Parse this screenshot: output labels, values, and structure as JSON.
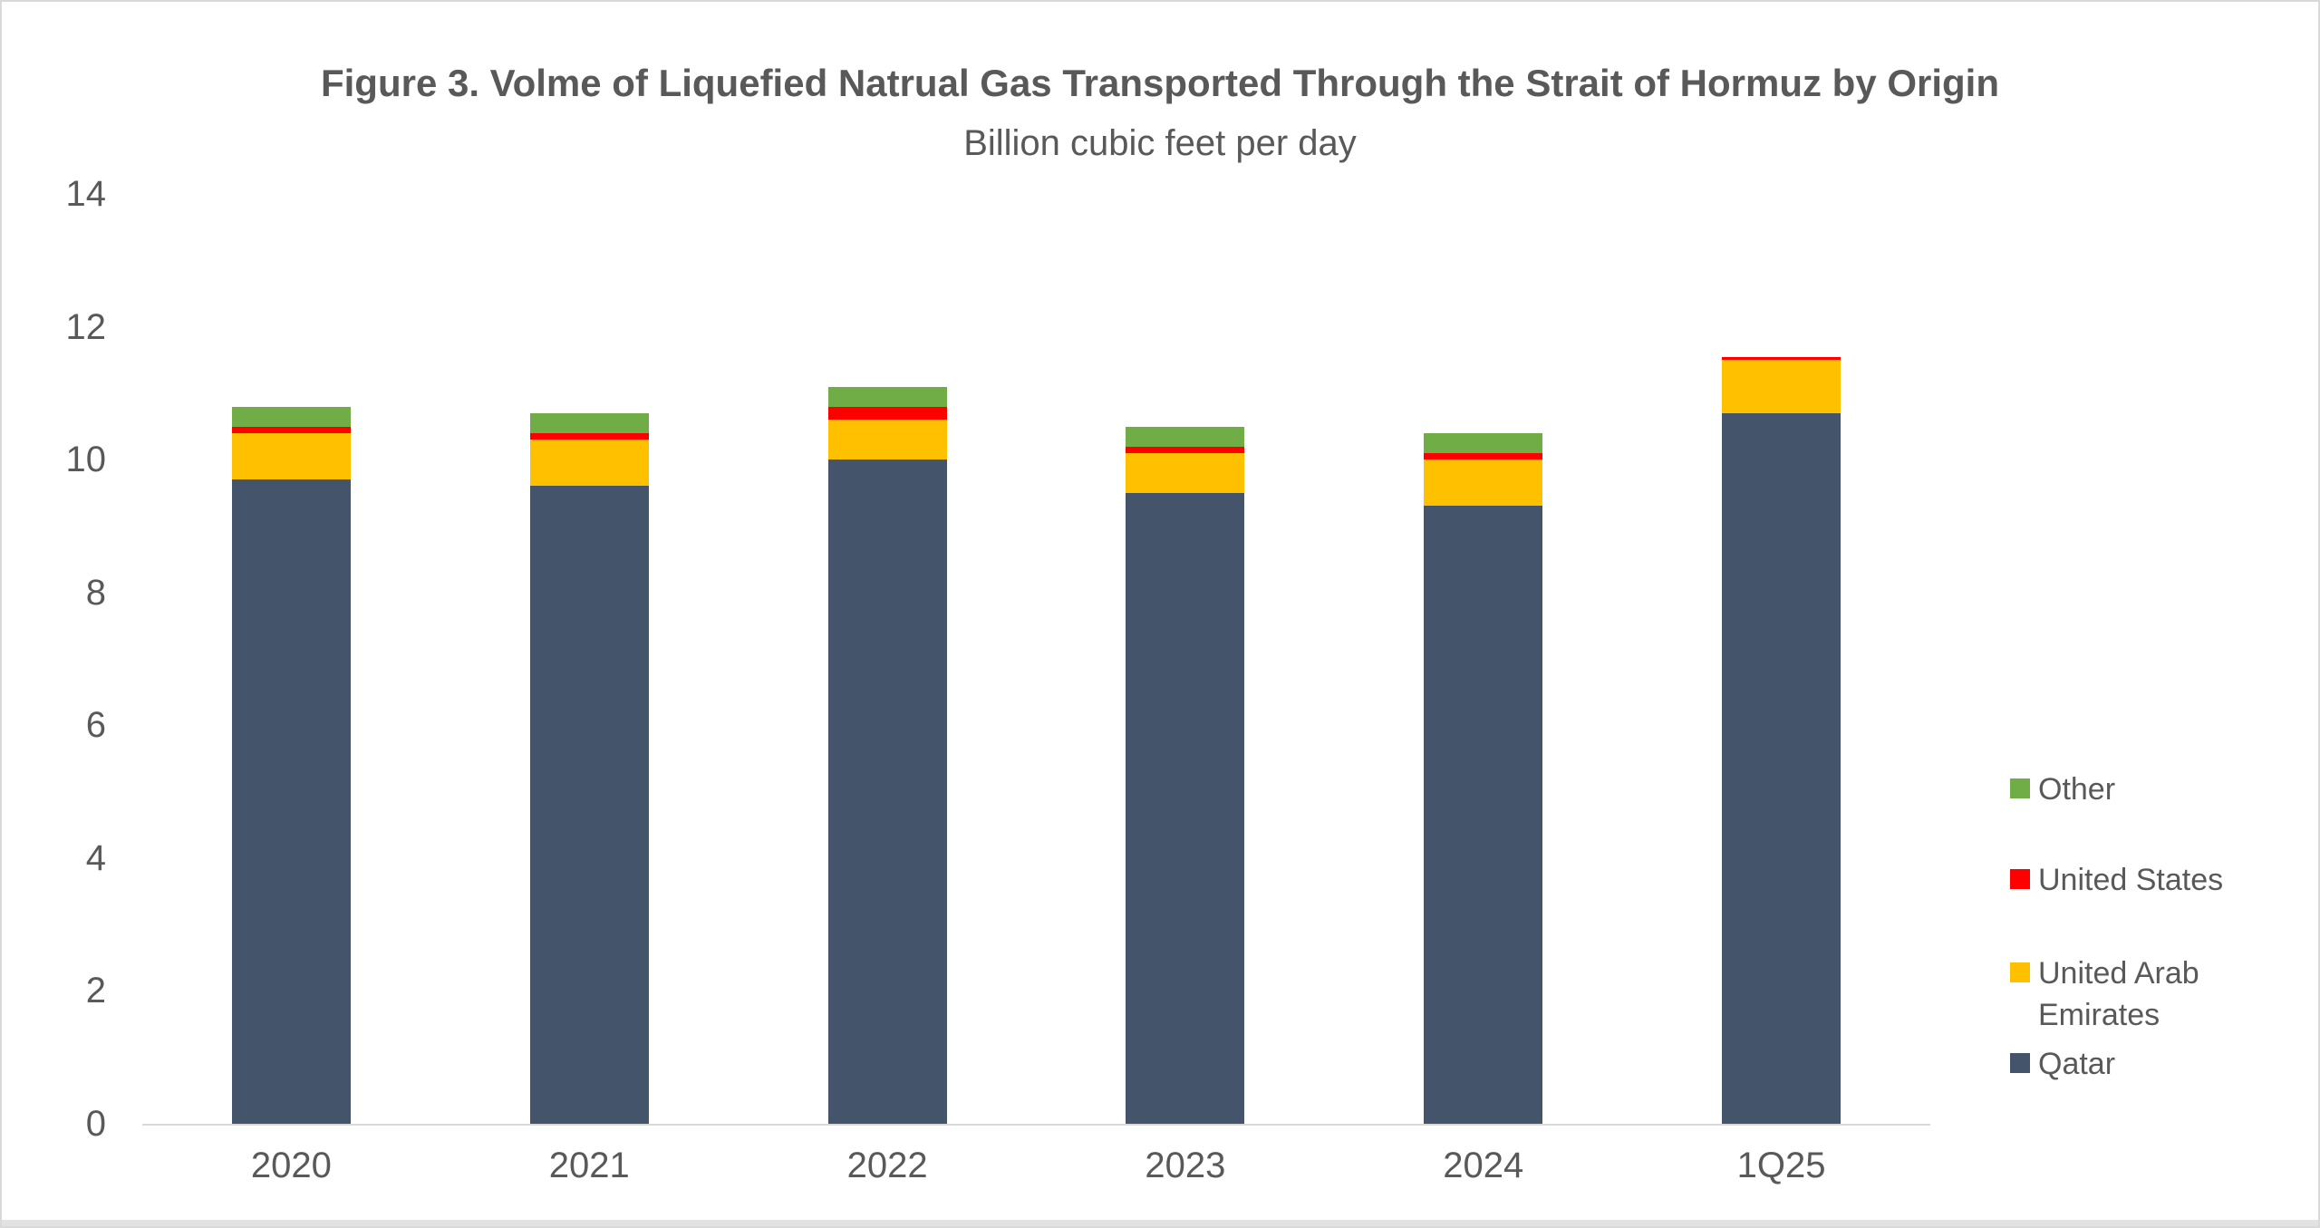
{
  "chart_data": {
    "type": "bar",
    "stacked": true,
    "title": "Figure 3. Volme of Liquefied Natrual Gas Transported Through the Strait of Hormuz by Origin",
    "subtitle": "Billion cubic feet per day",
    "categories": [
      "2020",
      "2021",
      "2022",
      "2023",
      "2024",
      "1Q25"
    ],
    "series": [
      {
        "name": "Qatar",
        "color": "#44546A",
        "values": [
          9.7,
          9.6,
          10.0,
          9.5,
          9.3,
          10.7
        ]
      },
      {
        "name": "United Arab Emirates",
        "color": "#FFC000",
        "values": [
          0.7,
          0.7,
          0.6,
          0.6,
          0.7,
          0.8
        ]
      },
      {
        "name": "United States",
        "color": "#FF0000",
        "values": [
          0.1,
          0.1,
          0.2,
          0.1,
          0.1,
          0.05
        ]
      },
      {
        "name": "Other",
        "color": "#70AD47",
        "values": [
          0.3,
          0.3,
          0.3,
          0.3,
          0.3,
          0
        ]
      }
    ],
    "totals": [
      10.8,
      10.7,
      11.1,
      10.5,
      10.4,
      11.55
    ],
    "ylim": [
      0,
      14
    ],
    "yticks": [
      0,
      2,
      4,
      6,
      8,
      10,
      12,
      14
    ],
    "xlabel": "",
    "ylabel": "",
    "grid": false,
    "legend_position": "right"
  },
  "legend": {
    "items": [
      {
        "label": "Other",
        "color": "#70AD47"
      },
      {
        "label": "United States",
        "color": "#FF0000"
      },
      {
        "label": "United Arab Emirates",
        "color": "#FFC000"
      },
      {
        "label": "Qatar",
        "color": "#44546A"
      }
    ]
  },
  "colors": {
    "text": "#595959",
    "axis_line": "#D9D9D9",
    "background": "#FFFFFF"
  }
}
